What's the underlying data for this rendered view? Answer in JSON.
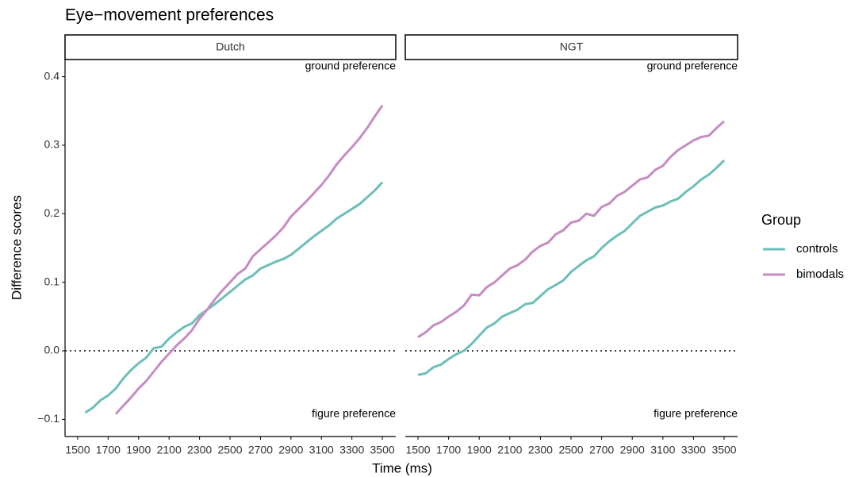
{
  "chart_data": {
    "type": "line",
    "title": "Eye−movement preferences",
    "xlabel": "Time (ms)",
    "ylabel": "Difference scores",
    "legend_title": "Group",
    "xlim": [
      1417,
      3588
    ],
    "xticks": [
      1500,
      1700,
      1900,
      2100,
      2300,
      2500,
      2700,
      2900,
      3100,
      3300,
      3500
    ],
    "ylim": [
      -0.125,
      0.425
    ],
    "yticks": [
      {
        "value": -0.1,
        "label": "−0.1"
      },
      {
        "value": 0,
        "label": "0.0"
      },
      {
        "value": 0.1,
        "label": "0.1"
      },
      {
        "value": 0.2,
        "label": "0.2"
      },
      {
        "value": 0.3,
        "label": "0.3"
      },
      {
        "value": 0.4,
        "label": "0.4"
      }
    ],
    "hline": 0,
    "x": [
      1500,
      1550,
      1600,
      1650,
      1700,
      1750,
      1800,
      1850,
      1900,
      1950,
      2000,
      2050,
      2100,
      2150,
      2200,
      2250,
      2300,
      2350,
      2400,
      2450,
      2500,
      2550,
      2600,
      2650,
      2700,
      2750,
      2800,
      2850,
      2900,
      2950,
      3000,
      3050,
      3100,
      3150,
      3200,
      3250,
      3300,
      3350,
      3400,
      3450,
      3500
    ],
    "panels": [
      {
        "name": "Dutch",
        "annotations": [
          "ground preference",
          "figure preference"
        ],
        "series": [
          {
            "name": "controls",
            "color": "#6cbfb8",
            "values": [
              null,
              -0.09,
              -0.083,
              -0.072,
              -0.065,
              -0.055,
              -0.04,
              -0.028,
              -0.018,
              -0.01,
              0.004,
              0.006,
              0.018,
              0.027,
              0.035,
              0.04,
              0.052,
              0.06,
              0.068,
              0.077,
              0.086,
              0.095,
              0.104,
              0.11,
              0.12,
              0.125,
              0.13,
              0.134,
              0.14,
              0.149,
              0.158,
              0.167,
              0.175,
              0.183,
              0.193,
              0.2,
              0.207,
              0.214,
              0.224,
              0.234,
              0.246
            ]
          },
          {
            "name": "bimodals",
            "color": "#c68cc2",
            "values": [
              null,
              null,
              null,
              null,
              null,
              -0.092,
              -0.08,
              -0.068,
              -0.055,
              -0.044,
              -0.03,
              -0.016,
              -0.004,
              0.008,
              0.018,
              0.03,
              0.047,
              0.06,
              0.075,
              0.088,
              0.1,
              0.112,
              0.12,
              0.138,
              0.148,
              0.158,
              0.168,
              0.18,
              0.196,
              0.207,
              0.218,
              0.23,
              0.242,
              0.256,
              0.272,
              0.285,
              0.297,
              0.31,
              0.325,
              0.342,
              0.358
            ]
          }
        ]
      },
      {
        "name": "NGT",
        "annotations": [
          "ground preference",
          "figure preference"
        ],
        "series": [
          {
            "name": "controls",
            "color": "#6cbfb8",
            "values": [
              -0.035,
              -0.033,
              -0.024,
              -0.02,
              -0.012,
              -0.005,
              0.0,
              0.01,
              0.022,
              0.034,
              0.04,
              0.05,
              0.055,
              0.06,
              0.068,
              0.07,
              0.08,
              0.09,
              0.096,
              0.103,
              0.115,
              0.124,
              0.132,
              0.138,
              0.15,
              0.16,
              0.168,
              0.175,
              0.186,
              0.197,
              0.203,
              0.209,
              0.212,
              0.218,
              0.222,
              0.232,
              0.24,
              0.25,
              0.257,
              0.267,
              0.278
            ]
          },
          {
            "name": "bimodals",
            "color": "#c68cc2",
            "values": [
              0.02,
              0.027,
              0.037,
              0.042,
              0.05,
              0.057,
              0.066,
              0.082,
              0.081,
              0.093,
              0.1,
              0.11,
              0.12,
              0.125,
              0.133,
              0.145,
              0.153,
              0.158,
              0.17,
              0.176,
              0.187,
              0.19,
              0.2,
              0.197,
              0.21,
              0.215,
              0.226,
              0.232,
              0.241,
              0.25,
              0.253,
              0.264,
              0.27,
              0.283,
              0.293,
              0.3,
              0.307,
              0.312,
              0.314,
              0.325,
              0.335
            ]
          }
        ]
      }
    ]
  }
}
